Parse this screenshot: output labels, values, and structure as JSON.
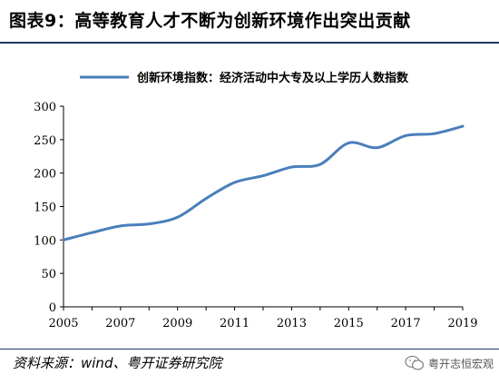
{
  "header": {
    "title": "图表9：高等教育人才不断为创新环境作出突出贡献"
  },
  "footer": {
    "source": "资料来源：wind、粤开证券研究院",
    "watermark": "粤开志恒宏观",
    "watermark_icon": "wechat-icon"
  },
  "colors": {
    "line": "#4a7ebb",
    "rule": "#1f3864"
  },
  "chart_data": {
    "type": "line",
    "title": "",
    "xlabel": "",
    "ylabel": "",
    "legend_position": "top",
    "grid": false,
    "xlim": [
      2005,
      2019
    ],
    "ylim": [
      0,
      300
    ],
    "x_ticks": [
      "2005",
      "2007",
      "2009",
      "2011",
      "2013",
      "2015",
      "2017",
      "2019"
    ],
    "y_ticks": [
      "0",
      "50",
      "100",
      "150",
      "200",
      "250",
      "300"
    ],
    "x": [
      2005,
      2006,
      2007,
      2008,
      2009,
      2010,
      2011,
      2012,
      2013,
      2014,
      2015,
      2016,
      2017,
      2018,
      2019
    ],
    "series": [
      {
        "name": "创新环境指数：经济活动中大专及以上学历人数指数",
        "values": [
          100,
          111,
          121,
          124,
          134,
          162,
          186,
          196,
          209,
          213,
          245,
          238,
          256,
          259,
          270
        ]
      }
    ]
  }
}
